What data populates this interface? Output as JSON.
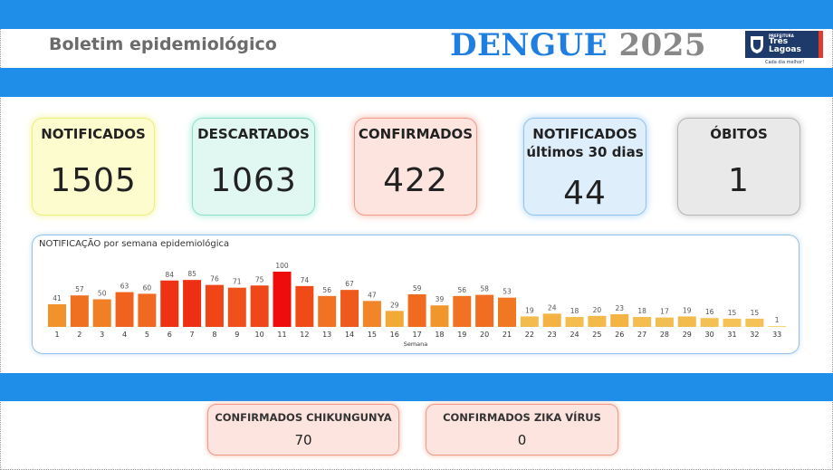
{
  "header": {
    "title": "Boletim epidemiológico",
    "dengue_word": "DENGUE",
    "year": "2025"
  },
  "logo": {
    "small_text": "PREFEITURA",
    "name": "Três Lagoas",
    "tagline": "Cada dia melhor!"
  },
  "kpis": {
    "notificados": {
      "label": "NOTIFICADOS",
      "value": "1505"
    },
    "descartados": {
      "label": "DESCARTADOS",
      "value": "1063"
    },
    "confirmados": {
      "label": "CONFIRMADOS",
      "value": "422"
    },
    "notificados30": {
      "label": "NOTIFICADOS",
      "sublabel": "últimos 30 dias",
      "value": "44"
    },
    "obitos": {
      "label": "ÓBITOS",
      "value": "1"
    }
  },
  "chart_data": {
    "type": "bar",
    "title": "NOTIFICAÇÃO por semana epidemiológica",
    "xlabel": "Semana",
    "ylabel": "",
    "categories": [
      "1",
      "2",
      "3",
      "4",
      "5",
      "6",
      "7",
      "8",
      "9",
      "10",
      "11",
      "12",
      "13",
      "14",
      "15",
      "16",
      "17",
      "18",
      "19",
      "20",
      "21",
      "22",
      "23",
      "24",
      "25",
      "26",
      "27",
      "28",
      "29",
      "30",
      "31",
      "32",
      "33"
    ],
    "values": [
      41,
      57,
      50,
      63,
      60,
      84,
      85,
      76,
      71,
      75,
      100,
      74,
      56,
      67,
      47,
      29,
      59,
      39,
      56,
      58,
      53,
      19,
      24,
      18,
      20,
      23,
      18,
      17,
      19,
      16,
      15,
      15,
      1
    ],
    "ylim": [
      0,
      100
    ],
    "grid": false,
    "color_scale": [
      "#f5dc76",
      "#f2a22e",
      "#ef5b1c",
      "#ee0d0a"
    ]
  },
  "bottom": {
    "chikungunya": {
      "label": "CONFIRMADOS CHIKUNGUNYA",
      "value": "70"
    },
    "zika": {
      "label": "CONFIRMADOS ZIKA VÍRUS",
      "value": "0"
    }
  },
  "colors": {
    "band": "#1e8ee9",
    "dengue": "#1e7fe0",
    "year": "#888888"
  }
}
